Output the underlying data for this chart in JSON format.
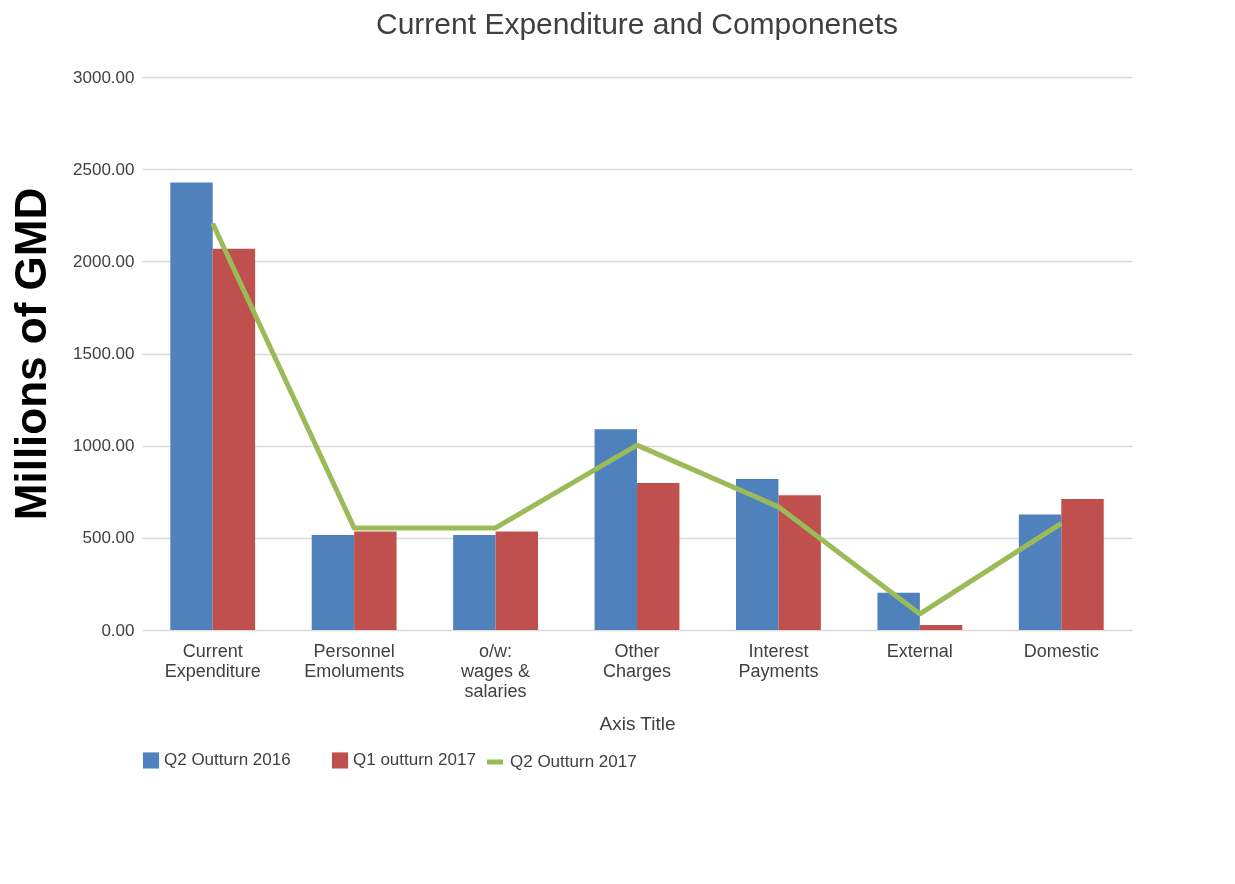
{
  "chart_data": {
    "type": "bar",
    "title": "Current Expenditure and Componenets",
    "xlabel": "Axis Title",
    "ylabel": "Millions of GMD",
    "categories": [
      "Current Expenditure",
      "Personnel Emoluments",
      "o/w: wages & salaries",
      "Other Charges",
      "Interest Payments",
      "External",
      "Domestic"
    ],
    "series": [
      {
        "name": "Q2 Outturn 2016",
        "color": "#4f81bd",
        "values": [
          2427,
          516,
          516,
          1089,
          819,
          202,
          626
        ]
      },
      {
        "name": "Q1 outturn 2017",
        "color": "#c0504d",
        "values": [
          2068,
          535,
          535,
          798,
          731,
          27,
          711
        ]
      },
      {
        "name": "Q2 Outturn 2017",
        "type": "line",
        "color": "#9bbb59",
        "values": [
          2205,
          554,
          554,
          1003,
          668,
          87,
          579
        ]
      }
    ],
    "ylim": [
      0,
      3000
    ],
    "yticks": [
      {
        "value": 0,
        "label": "0.00"
      },
      {
        "value": 500,
        "label": "500.00"
      },
      {
        "value": 1000,
        "label": "1000.00"
      },
      {
        "value": 1500,
        "label": "1500.00"
      },
      {
        "value": 2000,
        "label": "2000.00"
      },
      {
        "value": 2500,
        "label": "2500.00"
      },
      {
        "value": 3000,
        "label": "3000.00"
      }
    ],
    "grid": "y",
    "legend": "bottom"
  }
}
